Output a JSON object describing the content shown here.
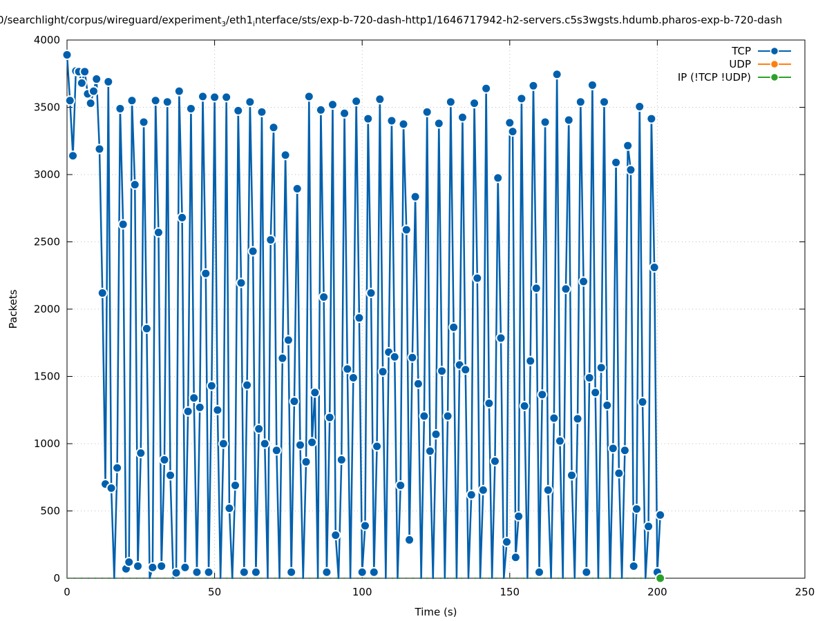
{
  "chart_data": {
    "type": "line",
    "title_parts": [
      "0/searchlight/corpus/wireguard/experiment",
      "3",
      "/eth1",
      "i",
      "nterface/sts/exp-b-720-dash-http1/1646717942-h2-servers.c5s3wgsts.hdumb.pharos-exp-b-720-dash"
    ],
    "xlabel": "Time (s)",
    "ylabel": "Packets",
    "xlim": [
      0,
      250
    ],
    "ylim": [
      0,
      4000
    ],
    "xticks": [
      0,
      50,
      100,
      150,
      200,
      250
    ],
    "yticks": [
      0,
      500,
      1000,
      1500,
      2000,
      2500,
      3000,
      3500,
      4000
    ],
    "grid": true,
    "legend_position": "top-right",
    "x_start": 0,
    "x_step": 1,
    "series": [
      {
        "name": "TCP",
        "color": "#0060ad",
        "values": [
          3890,
          3550,
          3140,
          3770,
          3765,
          3680,
          3765,
          3600,
          3530,
          3620,
          3710,
          3190,
          2120,
          700,
          3690,
          670,
          0,
          820,
          3490,
          2630,
          70,
          120,
          3550,
          2925,
          90,
          930,
          3390,
          1855,
          0,
          80,
          3550,
          2570,
          90,
          880,
          3540,
          765,
          0,
          40,
          3620,
          2680,
          80,
          1240,
          3490,
          1340,
          45,
          1270,
          3580,
          2265,
          45,
          1430,
          3575,
          1250,
          0,
          1000,
          3575,
          520,
          0,
          690,
          3475,
          2195,
          45,
          1435,
          3540,
          2430,
          45,
          1110,
          3465,
          1000,
          0,
          2515,
          3350,
          950,
          0,
          1635,
          3145,
          1770,
          45,
          1315,
          2895,
          990,
          0,
          865,
          3580,
          1010,
          1380,
          0,
          3480,
          2090,
          45,
          1195,
          3520,
          320,
          0,
          880,
          3455,
          1555,
          0,
          1490,
          3545,
          1935,
          45,
          390,
          3415,
          2120,
          45,
          980,
          3560,
          1535,
          0,
          1680,
          3400,
          1645,
          0,
          690,
          3375,
          2590,
          285,
          1640,
          2835,
          1445,
          0,
          1205,
          3465,
          945,
          0,
          1070,
          3380,
          1540,
          0,
          1205,
          3540,
          1865,
          0,
          1585,
          3425,
          1550,
          0,
          620,
          3530,
          2230,
          0,
          655,
          3640,
          1300,
          0,
          870,
          2975,
          1785,
          0,
          270,
          3385,
          3320,
          155,
          460,
          3565,
          1280,
          0,
          1615,
          3660,
          2155,
          45,
          1365,
          3390,
          655,
          0,
          1190,
          3745,
          1020,
          0,
          2150,
          3405,
          765,
          0,
          1185,
          3540,
          2205,
          45,
          1490,
          3665,
          1380,
          0,
          1565,
          3540,
          1285,
          0,
          965,
          3090,
          780,
          0,
          950,
          3215,
          3035,
          90,
          515,
          3505,
          1310,
          0,
          385,
          3415,
          2310,
          45,
          470
        ]
      },
      {
        "name": "UDP",
        "color": "#ff7f0e",
        "values": []
      },
      {
        "name": "IP (!TCP  !UDP)",
        "color": "#2ca02c",
        "values": [
          0
        ],
        "x": [
          201
        ]
      }
    ]
  }
}
